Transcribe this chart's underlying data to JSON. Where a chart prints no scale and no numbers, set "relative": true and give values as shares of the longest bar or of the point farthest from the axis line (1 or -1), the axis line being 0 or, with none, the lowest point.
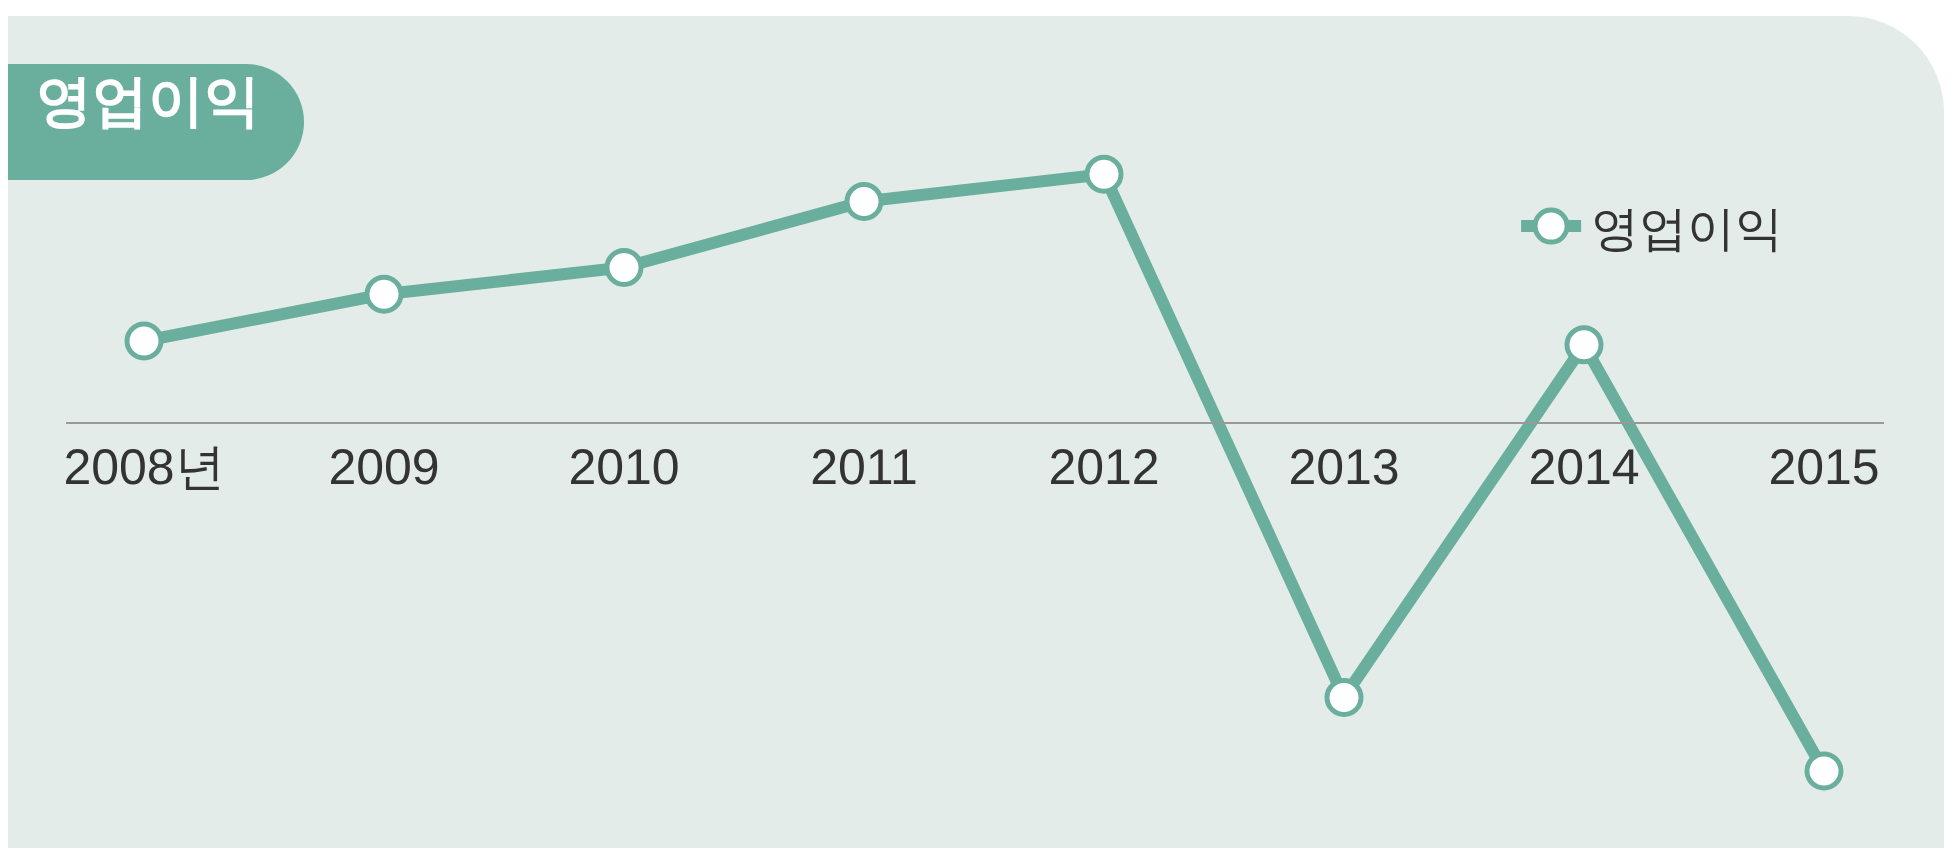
{
  "chart_data": {
    "type": "line",
    "title": "영업이익",
    "relative": true,
    "categories": [
      "2008년",
      "2009",
      "2010",
      "2011",
      "2012",
      "2013",
      "2014",
      "2015"
    ],
    "series": [
      {
        "name": "영업이익",
        "color": "#6aae9e",
        "values": [
          0.233,
          0.367,
          0.444,
          0.633,
          0.711,
          -0.789,
          0.222,
          -1
        ]
      }
    ],
    "marker": "circle",
    "line_style": "solid",
    "legend": "top right",
    "grid": false
  }
}
